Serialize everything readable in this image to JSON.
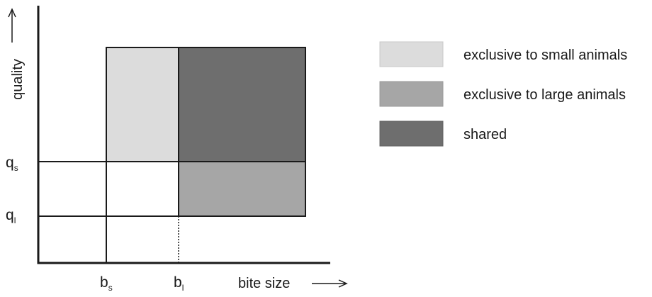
{
  "diagram": {
    "y_axis": {
      "label": "quality"
    },
    "x_axis": {
      "label": "bite size"
    },
    "y_ticks": {
      "qs": {
        "base": "q",
        "sub": "s"
      },
      "ql": {
        "base": "q",
        "sub": "l"
      }
    },
    "x_ticks": {
      "bs": {
        "base": "b",
        "sub": "s"
      },
      "bl": {
        "base": "b",
        "sub": "l"
      }
    },
    "regions": [
      {
        "id": "small",
        "label": "exclusive to small animals",
        "color": "#dcdcdc"
      },
      {
        "id": "large",
        "label": "exclusive to large animals",
        "color": "#a6a6a6"
      },
      {
        "id": "shared",
        "label": "shared",
        "color": "#6e6e6e"
      }
    ],
    "line_color": "#1a1a1a"
  }
}
